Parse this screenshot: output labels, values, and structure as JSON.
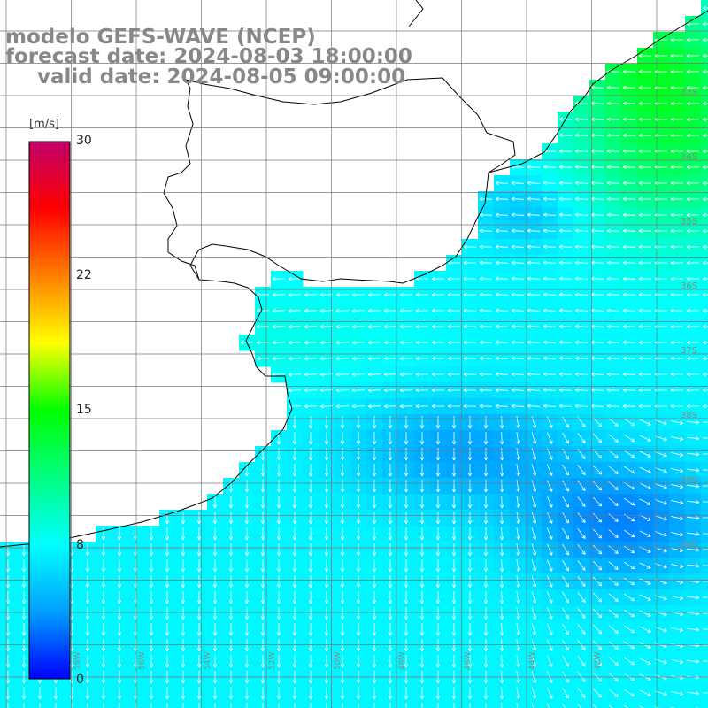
{
  "title": {
    "model": "modelo GEFS-WAVE (NCEP)",
    "forecast": "forecast date: 2024-08-03 18:00:00",
    "valid": "valid date: 2024-08-05 09:00:00"
  },
  "colorbar": {
    "unit": "[m/s]",
    "min": 0,
    "max": 30,
    "ticks": [
      "30",
      "22",
      "15",
      "8",
      "0"
    ],
    "colors": [
      "#0000ff",
      "#00a0ff",
      "#00ffff",
      "#00ff80",
      "#00ff00",
      "#ffff00",
      "#ff8000",
      "#ff0000",
      "#c0006a"
    ]
  },
  "map": {
    "lat_labels": [
      "33S",
      "34S",
      "35S",
      "36S",
      "37S",
      "38S",
      "39S",
      "40S"
    ],
    "lon_labels": [
      "58W",
      "56W",
      "54W",
      "52W",
      "50W",
      "48W",
      "46W",
      "44W",
      "42W"
    ]
  }
}
